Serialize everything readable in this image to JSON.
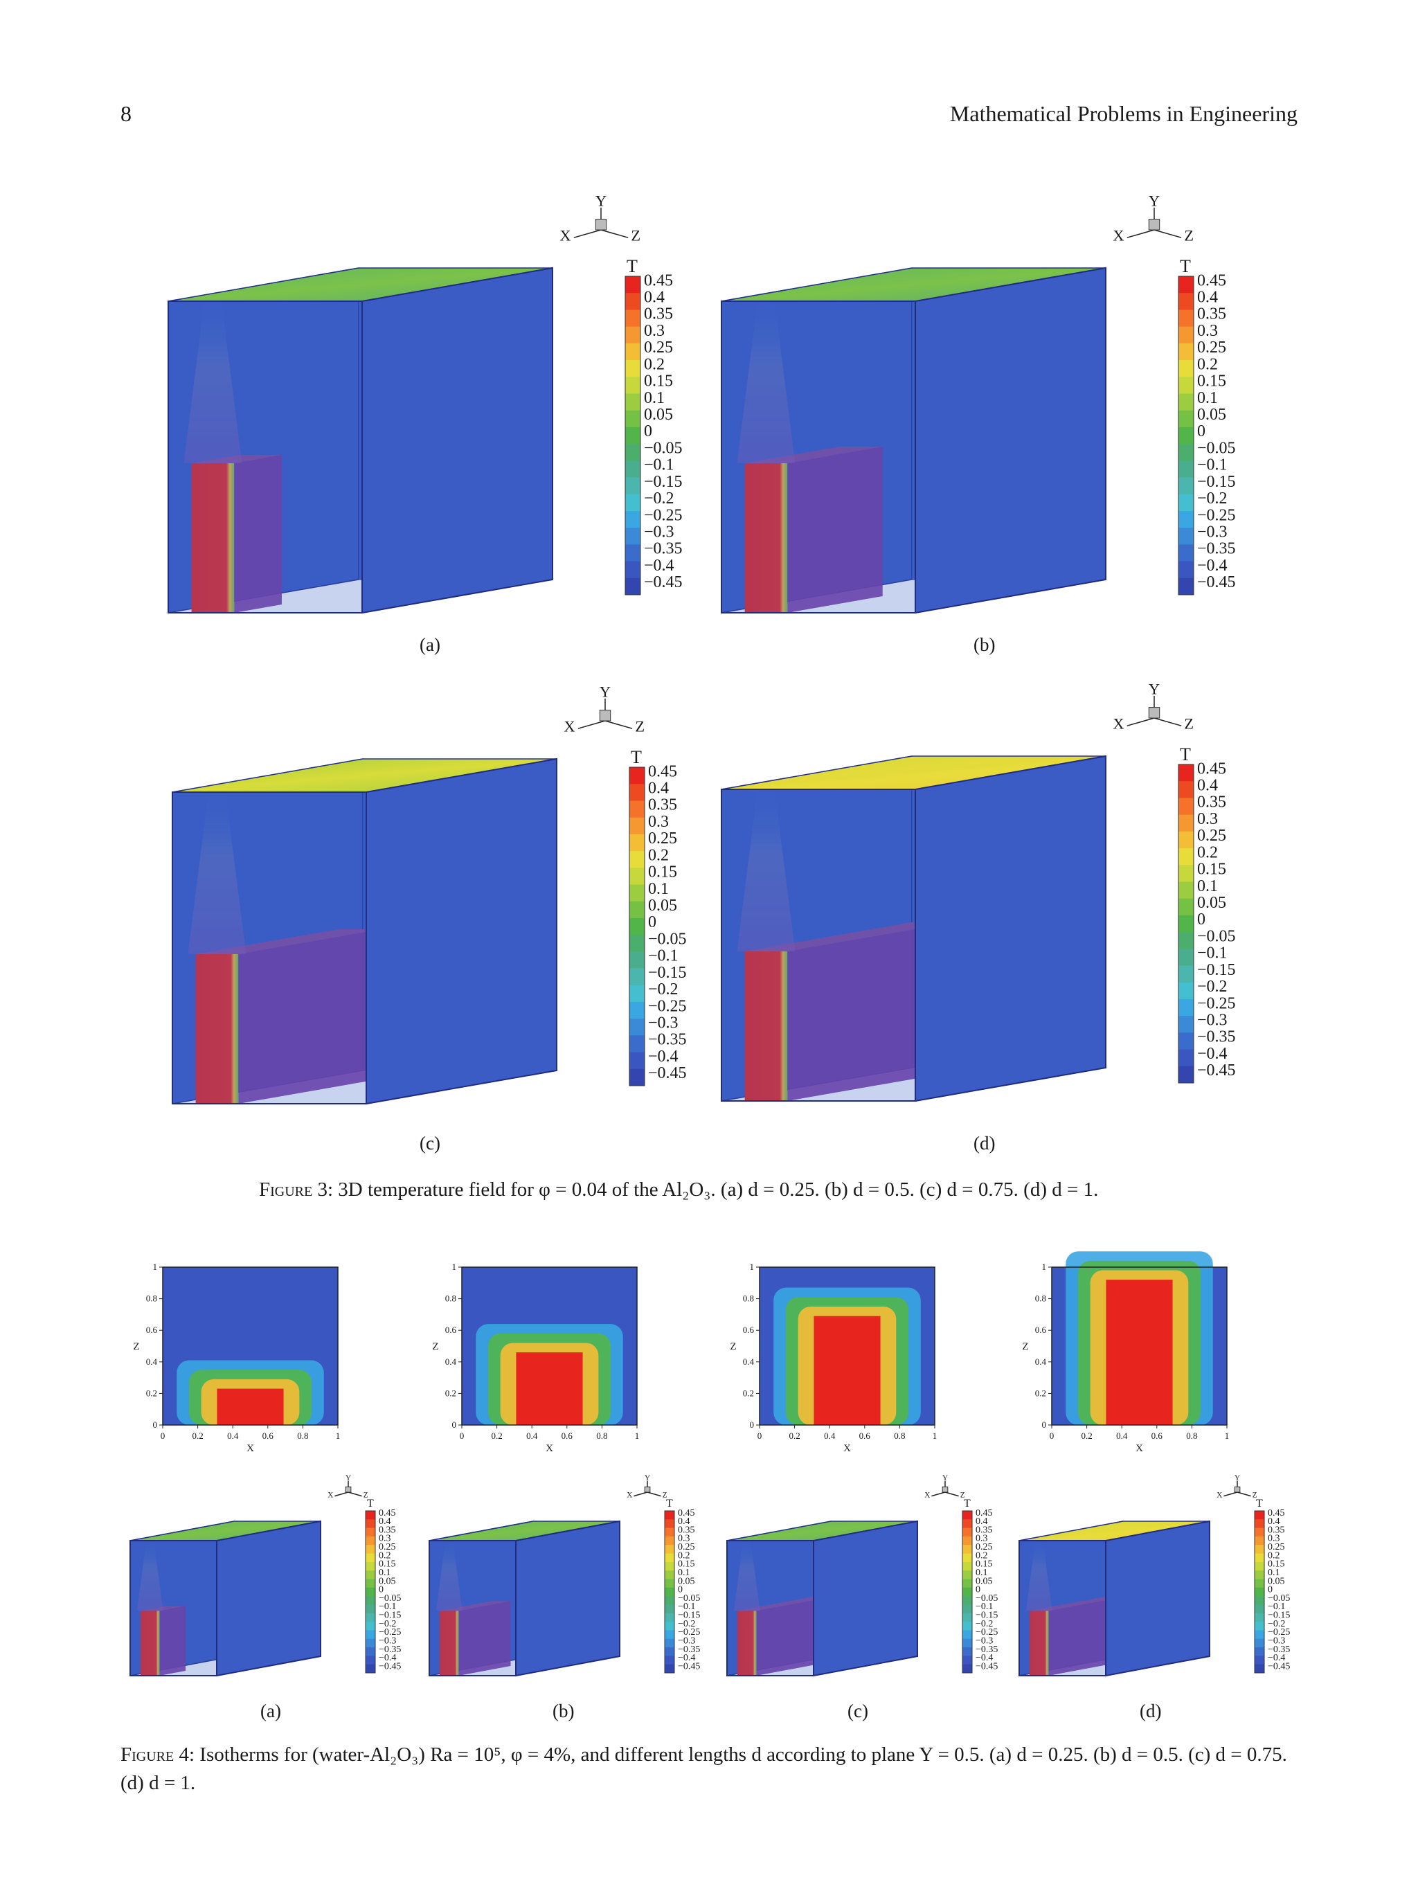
{
  "header": {
    "page_number": "8",
    "journal": "Mathematical Problems in Engineering"
  },
  "colorbar": {
    "title": "T",
    "levels": [
      "0.45",
      "0.4",
      "0.35",
      "0.3",
      "0.25",
      "0.2",
      "0.15",
      "0.1",
      "0.05",
      "0",
      "−0.05",
      "−0.1",
      "−0.15",
      "−0.2",
      "−0.25",
      "−0.3",
      "−0.35",
      "−0.4",
      "−0.45"
    ],
    "colors": [
      "#e8241f",
      "#ee4a22",
      "#f4722a",
      "#f69832",
      "#f4bd36",
      "#e8dc3a",
      "#c6d83c",
      "#9ccd40",
      "#74c146",
      "#52b54a",
      "#4cae6c",
      "#4aae8e",
      "#4ab6ae",
      "#44bfd0",
      "#3aa6e2",
      "#3a8ad8",
      "#3a6ccc",
      "#3a56c0",
      "#3346b0"
    ]
  },
  "axes_triad": {
    "x": "X",
    "y": "Y",
    "z": "Z"
  },
  "figure3": {
    "panels": [
      {
        "label": "(a)",
        "d": 0.25
      },
      {
        "label": "(b)",
        "d": 0.5
      },
      {
        "label": "(c)",
        "d": 0.75
      },
      {
        "label": "(d)",
        "d": 1
      }
    ],
    "caption_label": "Figure 3:",
    "caption_text": "3D temperature field for φ = 0.04 of the Al₂O₃. (a) d = 0.25. (b) d = 0.5. (c) d = 0.75. (d) d = 1."
  },
  "figure4": {
    "contour_axes": {
      "xlabel": "X",
      "ylabel": "Z",
      "xticks": [
        "0",
        "0.2",
        "0.4",
        "0.6",
        "0.8",
        "1"
      ],
      "yticks": [
        "0",
        "0.2",
        "0.4",
        "0.6",
        "0.8",
        "1"
      ]
    },
    "panels": [
      {
        "label": "(a)",
        "d": 0.25
      },
      {
        "label": "(b)",
        "d": 0.5
      },
      {
        "label": "(c)",
        "d": 0.75
      },
      {
        "label": "(d)",
        "d": 1
      }
    ],
    "caption_label": "Figure 4:",
    "caption_text": "Isotherms for (water-Al₂O₃) Ra = 10⁵, φ = 4%, and different lengths d according to plane Y = 0.5. (a) d = 0.25. (b) d = 0.5. (c) d = 0.75. (d) d = 1."
  }
}
